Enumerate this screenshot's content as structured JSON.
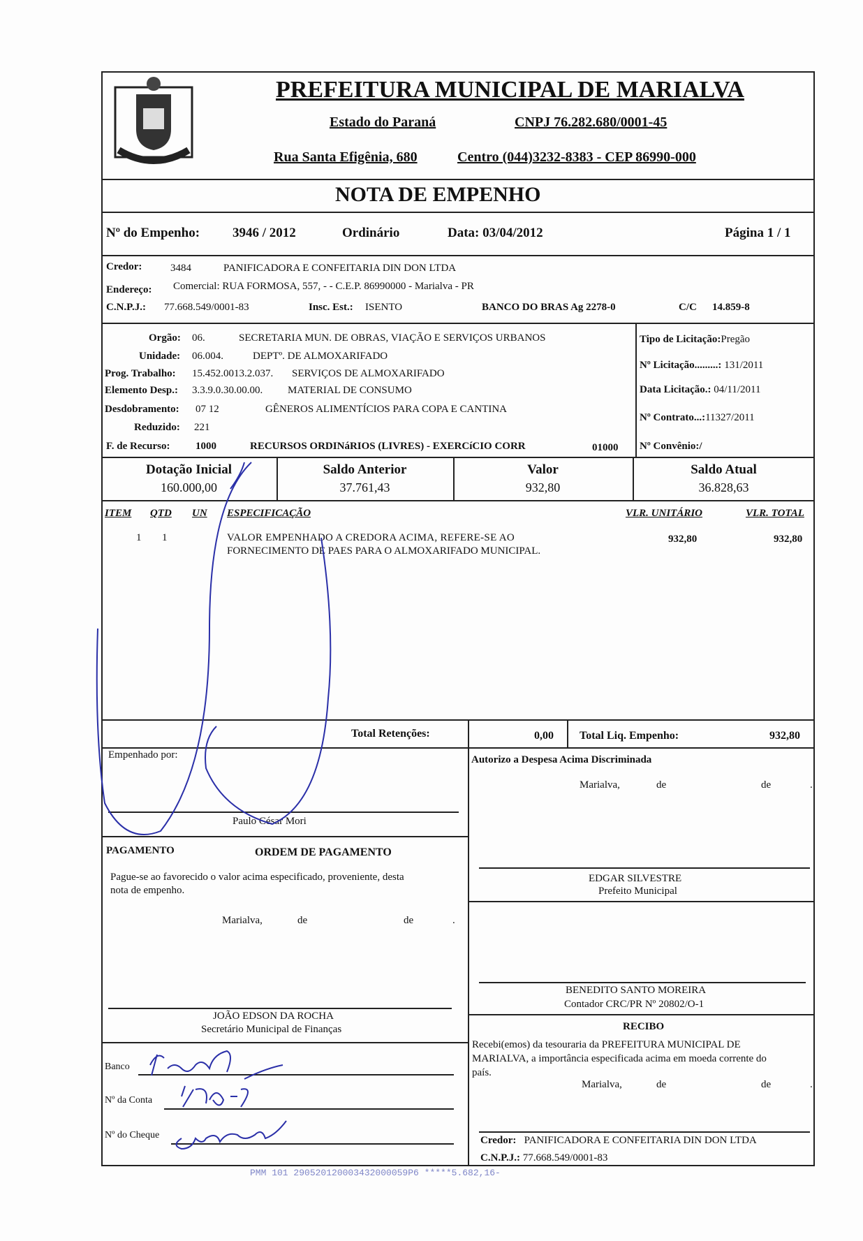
{
  "header": {
    "title": "PREFEITURA MUNICIPAL DE MARIALVA",
    "state": "Estado do Paraná",
    "cnpj": "CNPJ 76.282.680/0001-45",
    "address": "Rua Santa Efigênia, 680",
    "contact": "Centro  (044)3232-8383  -  CEP 86990-000"
  },
  "doc_title": "NOTA  DE  EMPENHO",
  "empenho": {
    "label": "Nº do Empenho:",
    "number": "3946 / 2012",
    "type": "Ordinário",
    "date": "Data: 03/04/2012",
    "page": "Página  1 / 1"
  },
  "credor": {
    "label": "Credor:",
    "code": "3484",
    "name": "PANIFICADORA E CONFEITARIA DIN DON LTDA",
    "address_label": "Endereço:",
    "address": "Comercial: RUA FORMOSA, 557, - - C.E.P. 86990000 - Marialva - PR",
    "cnpj_label": "C.N.P.J.:",
    "cnpj": "77.668.549/0001-83",
    "insc_label": "Insc. Est.:",
    "insc": "ISENTO",
    "bank": "BANCO DO BRAS  Ag   2278-0",
    "cc_label": "C/C",
    "cc": "14.859-8"
  },
  "budget": {
    "rows": [
      {
        "label": "Orgão:",
        "code": "06.",
        "desc": "SECRETARIA MUN. DE OBRAS, VIAÇÃO E SERVIÇOS URBANOS"
      },
      {
        "label": "Unidade:",
        "code": "06.004.",
        "desc": "DEPTº. DE ALMOXARIFADO"
      },
      {
        "label": "Prog. Trabalho:",
        "code": "15.452.0013.2.037.",
        "desc": "SERVIÇOS DE ALMOXARIFADO"
      },
      {
        "label": "Elemento Desp.:",
        "code": "3.3.9.0.30.00.00.",
        "desc": "MATERIAL DE CONSUMO"
      },
      {
        "label": "Desdobramento:",
        "code": "07     12",
        "desc": "GÊNEROS ALIMENTÍCIOS PARA COPA E CANTINA"
      },
      {
        "label": "Reduzido:",
        "code": "221",
        "desc": ""
      }
    ],
    "recurso_label": "F. de Recurso:",
    "recurso_code": "1000",
    "recurso_desc": "RECURSOS ORDINáRIOS (LIVRES) - EXERCíCIO CORR",
    "recurso_num": "01000",
    "licitacao": {
      "tipo_label": "Tipo de Licitação:",
      "tipo": "Pregão",
      "num_label": "Nº Licitação.........:",
      "num": "131/2011",
      "data_label": "Data Licitação.:",
      "data": "04/11/2011",
      "contrato_label": "Nº Contrato...:",
      "contrato": "11327/2011",
      "convenio_label": "Nº Convênio:/"
    }
  },
  "balances": [
    {
      "label": "Dotação Inicial",
      "value": "160.000,00"
    },
    {
      "label": "Saldo Anterior",
      "value": "37.761,43"
    },
    {
      "label": "Valor",
      "value": "932,80"
    },
    {
      "label": "Saldo Atual",
      "value": "36.828,63"
    }
  ],
  "items": {
    "headers": {
      "item": "ITEM",
      "qtd": "QTD",
      "un": "UN",
      "spec": "ESPECIFICAÇÃO",
      "unit": "VLR. UNITÁRIO",
      "total": "VLR. TOTAL"
    },
    "rows": [
      {
        "item": "1",
        "qtd": "1",
        "un": "",
        "spec1": "VALOR  EMPENHADO  A  CREDORA  ACIMA,  REFERE-SE  AO",
        "spec2": "FORNECIMENTO DE PAES PARA O ALMOXARIFADO MUNICIPAL.",
        "unit": "932,80",
        "total": "932,80"
      }
    ]
  },
  "totals": {
    "ret_label": "Total Retenções:",
    "ret": "0,00",
    "liq_label": "Total Liq. Empenho:",
    "liq": "932,80"
  },
  "empenhado": {
    "label": "Empenhado por:",
    "name": "Paulo César Mori"
  },
  "autorizo": {
    "title": "Autorizo a Despesa Acima Discriminada",
    "city": "Marialva,",
    "de1": "de",
    "de2": "de",
    "dot": ".",
    "name": "EDGAR SILVESTRE",
    "role": "Prefeito Municipal"
  },
  "pagamento": {
    "label": "PAGAMENTO",
    "title": "ORDEM DE PAGAMENTO",
    "text1": "Pague-se ao favorecido o valor acima especificado, proveniente, desta",
    "text2": "nota de empenho.",
    "city": "Marialva,",
    "de1": "de",
    "de2": "de",
    "dot": ".",
    "name": "JOÃO EDSON DA ROCHA",
    "role": "Secretário Municipal de Finanças"
  },
  "contador": {
    "name": "BENEDITO SANTO MOREIRA",
    "role": "Contador CRC/PR Nº 20802/O-1"
  },
  "recibo": {
    "title": "RECIBO",
    "text1": "Recebi(emos)  da  tesouraria  da  PREFEITURA  MUNICIPAL  DE",
    "text2": "MARIALVA, a importância especificada acima em moeda corrente do",
    "text3": "país.",
    "city": "Marialva,",
    "de1": "de",
    "de2": "de",
    "dot": ".",
    "credor_label": "Credor:",
    "credor": "PANIFICADORA E CONFEITARIA DIN DON LTDA",
    "cnpj_label": "C.N.P.J.:",
    "cnpj": "77.668.549/0001-83"
  },
  "bank_fields": {
    "banco": "Banco",
    "conta": "Nº da Conta",
    "cheque": "Nº do Cheque"
  },
  "stamp": "PMM 101 290520120003432000059P6 *****5.682,16-",
  "colors": {
    "ink": "#2a2fa8",
    "stamp": "#7f86c8"
  }
}
